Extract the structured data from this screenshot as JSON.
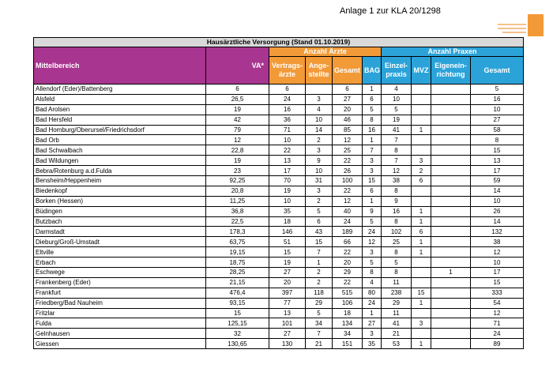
{
  "header": {
    "annex": "Anlage 1 zur KLA 20/1298"
  },
  "table": {
    "title": "Hausärztliche Versorgung (Stand 01.10.2019)",
    "group_doctors": "Anzahl Ärzte",
    "group_practices": "Anzahl Praxen",
    "columns": [
      "Mittelbereich",
      "VA*",
      "Vertrags-\närzte",
      "Ange-\nstellte",
      "Gesamt",
      "BAG",
      "Einzel-\npraxis",
      "MVZ",
      "Eigenein-\nrichtung",
      "Gesamt"
    ],
    "rows": [
      [
        "Allendorf (Eder)/Battenberg",
        "6",
        "6",
        null,
        "6",
        "1",
        "4",
        null,
        null,
        "5"
      ],
      [
        "Alsfeld",
        "26,5",
        "24",
        "3",
        "27",
        "6",
        "10",
        null,
        null,
        "16"
      ],
      [
        "Bad Arolsen",
        "19",
        "16",
        "4",
        "20",
        "5",
        "5",
        null,
        null,
        "10"
      ],
      [
        "Bad Hersfeld",
        "42",
        "36",
        "10",
        "46",
        "8",
        "19",
        null,
        null,
        "27"
      ],
      [
        "Bad Homburg/Oberursel/Friedrichsdorf",
        "79",
        "71",
        "14",
        "85",
        "16",
        "41",
        "1",
        null,
        "58"
      ],
      [
        "Bad Orb",
        "12",
        "10",
        "2",
        "12",
        "1",
        "7",
        null,
        null,
        "8"
      ],
      [
        "Bad Schwalbach",
        "22,8",
        "22",
        "3",
        "25",
        "7",
        "8",
        null,
        null,
        "15"
      ],
      [
        "Bad Wildungen",
        "19",
        "13",
        "9",
        "22",
        "3",
        "7",
        "3",
        null,
        "13"
      ],
      [
        "Bebra/Rotenburg a.d.Fulda",
        "23",
        "17",
        "10",
        "26",
        "3",
        "12",
        "2",
        null,
        "17"
      ],
      [
        "Bensheim/Heppenheim",
        "92,25",
        "70",
        "31",
        "100",
        "15",
        "38",
        "6",
        null,
        "59"
      ],
      [
        "Biedenkopf",
        "20,8",
        "19",
        "3",
        "22",
        "6",
        "8",
        null,
        null,
        "14"
      ],
      [
        "Borken (Hessen)",
        "11,25",
        "10",
        "2",
        "12",
        "1",
        "9",
        null,
        null,
        "10"
      ],
      [
        "Büdingen",
        "36,8",
        "35",
        "5",
        "40",
        "9",
        "16",
        "1",
        null,
        "26"
      ],
      [
        "Butzbach",
        "22,5",
        "18",
        "6",
        "24",
        "5",
        "8",
        "1",
        null,
        "14"
      ],
      [
        "Darmstadt",
        "178,3",
        "146",
        "43",
        "189",
        "24",
        "102",
        "6",
        null,
        "132"
      ],
      [
        "Dieburg/Groß-Umstadt",
        "63,75",
        "51",
        "15",
        "66",
        "12",
        "25",
        "1",
        null,
        "38"
      ],
      [
        "Eltville",
        "19,15",
        "15",
        "7",
        "22",
        "3",
        "8",
        "1",
        null,
        "12"
      ],
      [
        "Erbach",
        "18,75",
        "19",
        "1",
        "20",
        "5",
        "5",
        null,
        null,
        "10"
      ],
      [
        "Eschwege",
        "28,25",
        "27",
        "2",
        "29",
        "8",
        "8",
        null,
        "1",
        "17"
      ],
      [
        "Frankenberg (Eder)",
        "21,15",
        "20",
        "2",
        "22",
        "4",
        "11",
        null,
        null,
        "15"
      ],
      [
        "Frankfurt",
        "476,4",
        "397",
        "118",
        "515",
        "80",
        "238",
        "15",
        null,
        "333"
      ],
      [
        "Friedberg/Bad Nauheim",
        "93,15",
        "77",
        "29",
        "106",
        "24",
        "29",
        "1",
        null,
        "54"
      ],
      [
        "Fritzlar",
        "15",
        "13",
        "5",
        "18",
        "1",
        "11",
        null,
        null,
        "12"
      ],
      [
        "Fulda",
        "125,15",
        "101",
        "34",
        "134",
        "27",
        "41",
        "3",
        null,
        "71"
      ],
      [
        "Gelnhausen",
        "32",
        "27",
        "7",
        "34",
        "3",
        "21",
        null,
        null,
        "24"
      ],
      [
        "Giessen",
        "130,65",
        "130",
        "21",
        "151",
        "35",
        "53",
        "1",
        null,
        "89"
      ]
    ]
  }
}
